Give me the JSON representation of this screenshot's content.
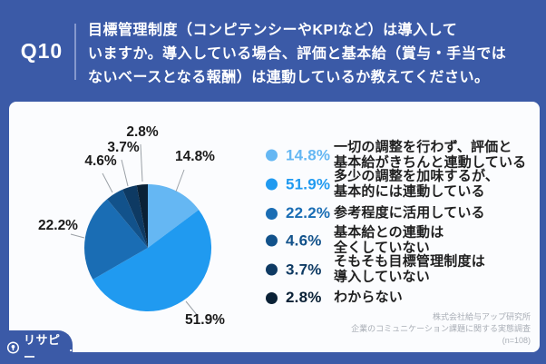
{
  "header": {
    "question_number": "Q10",
    "question_lines": [
      "目標管理制度（コンピテンシーやKPIなど）は導入して",
      "いますか。導入している場合、評価と基本給（賞与・手当では",
      "ないベースとなる報酬）は連動しているか教えてください。"
    ]
  },
  "chart_data": {
    "type": "pie",
    "title": "目標管理制度（コンピテンシーやKPIなど）は導入していますか。導入している場合、評価と基本給（賞与・手当ではないベースとなる報酬）は連動しているか教えてください。",
    "unit": "%",
    "start_angle": "top",
    "direction": "clockwise",
    "legend_position": "right",
    "categories": [
      "一切の調整を行わず、評価と基本給がきちんと連動している",
      "多少の調整を加味するが、基本的には連動している",
      "参考程度に活用している",
      "基本給との連動は全くしていない",
      "そもそも目標管理制度は導入していない",
      "わからない"
    ],
    "values": [
      14.8,
      51.9,
      22.2,
      4.6,
      3.7,
      2.8
    ],
    "colors": [
      "#65b7f3",
      "#209af0",
      "#1a6db4",
      "#12528b",
      "#0e3a63",
      "#0a2136"
    ],
    "legend": [
      {
        "percent": "14.8%",
        "lines": [
          "一切の調整を行わず、評価と",
          "基本給がきちんと連動している"
        ]
      },
      {
        "percent": "51.9%",
        "lines": [
          "多少の調整を加味するが、",
          "基本的には連動している"
        ]
      },
      {
        "percent": "22.2%",
        "lines": [
          "参考程度に活用している"
        ]
      },
      {
        "percent": "4.6%",
        "lines": [
          "基本給との連動は",
          "全くしていない"
        ]
      },
      {
        "percent": "3.7%",
        "lines": [
          "そもそも目標管理制度は",
          "導入していない"
        ]
      },
      {
        "percent": "2.8%",
        "lines": [
          "わからない"
        ]
      }
    ],
    "sample_size": "n=108"
  },
  "footer": {
    "company": "株式会社給与アップ研究所",
    "survey": "企業のコミュニケーション課題に関する実態調査",
    "sample": "(n=108)"
  },
  "branding": {
    "logo_text": "リサピー",
    "logo_period": "."
  },
  "colors": {
    "frame_blue": "#3b5aa7",
    "card_bg": "#fbfcfe",
    "label_text": "#1b1b1b",
    "leader_line": "#9aa0a6",
    "legend_text": "#1f1f1f",
    "footer_text": "#a9aeb6"
  }
}
